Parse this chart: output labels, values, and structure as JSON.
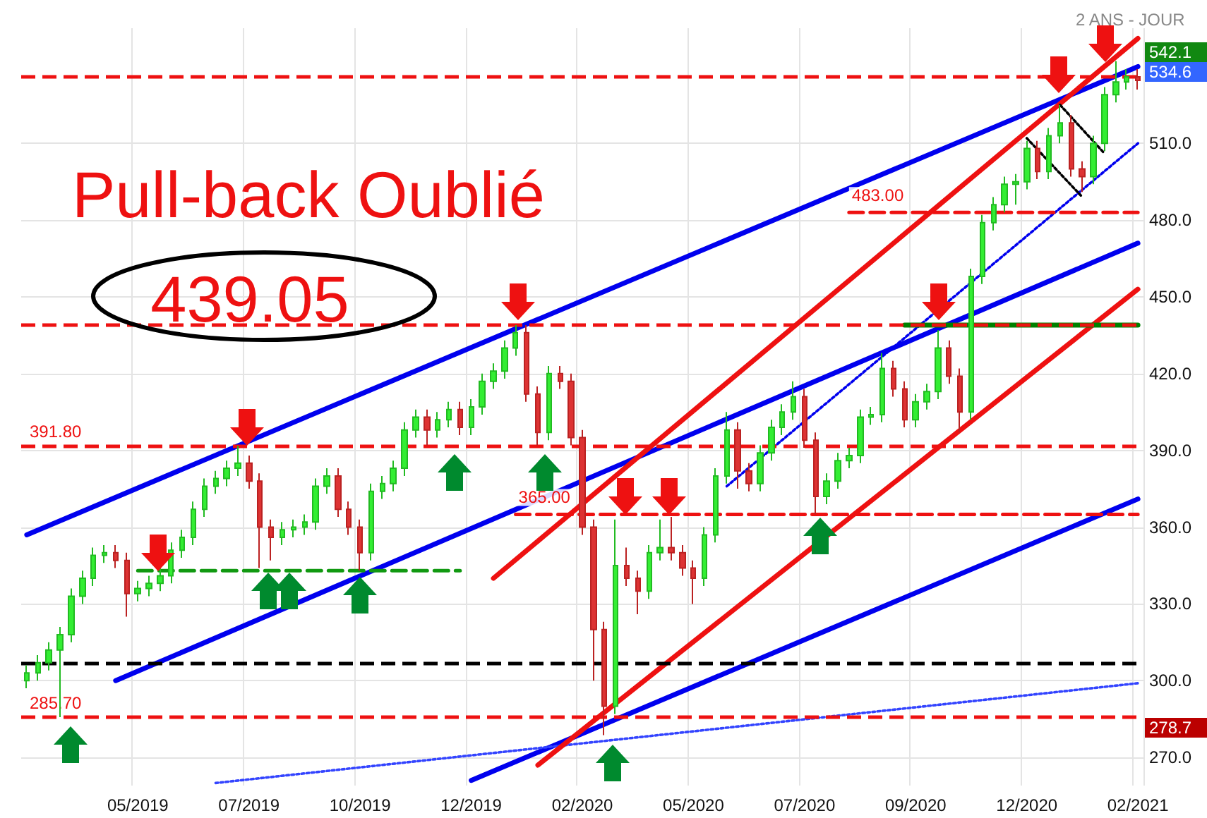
{
  "chart_data": {
    "type": "candlestick",
    "title": "Pull-back Oublié",
    "subtitle": "2 ANS - JOUR",
    "annotations": [
      "439.05",
      "542.1",
      "534.6",
      "278.7"
    ],
    "categories": [
      null,
      null,
      null,
      null,
      null,
      null,
      null,
      null,
      null,
      null,
      "05/2019",
      null,
      null,
      null,
      null,
      null,
      null,
      null,
      null,
      null,
      "07/2019",
      null,
      null,
      null,
      null,
      null,
      null,
      null,
      null,
      null,
      "10/2019",
      null,
      null,
      null,
      null,
      null,
      null,
      null,
      null,
      null,
      "12/2019",
      null,
      null,
      null,
      null,
      null,
      null,
      null,
      null,
      null,
      "02/2020",
      null,
      null,
      null,
      null,
      null,
      null,
      null,
      null,
      null,
      "05/2020",
      null,
      null,
      null,
      null,
      null,
      null,
      null,
      null,
      null,
      "07/2020",
      null,
      null,
      null,
      null,
      null,
      null,
      null,
      null,
      null,
      "09/2020",
      null,
      null,
      null,
      null,
      null,
      null,
      null,
      null,
      null,
      "12/2020",
      null,
      null,
      null,
      null,
      null,
      null,
      null,
      null,
      null,
      "02/2021"
    ],
    "ohlc": [
      [
        300,
        306,
        297,
        303
      ],
      [
        303,
        310,
        300,
        307
      ],
      [
        307,
        315,
        304,
        312
      ],
      [
        312,
        321,
        285.7,
        318
      ],
      [
        318,
        336,
        315,
        333
      ],
      [
        333,
        343,
        330,
        340
      ],
      [
        340,
        352,
        337,
        349
      ],
      [
        349,
        353,
        346,
        350
      ],
      [
        350,
        353,
        344,
        347
      ],
      [
        347,
        350,
        325,
        334
      ],
      [
        334,
        339,
        331,
        336
      ],
      [
        336,
        341,
        333,
        338
      ],
      [
        338,
        344,
        335,
        341
      ],
      [
        341,
        354,
        338,
        351
      ],
      [
        351,
        359,
        348,
        356
      ],
      [
        356,
        370,
        353,
        367
      ],
      [
        367,
        379,
        364,
        376
      ],
      [
        376,
        382,
        373,
        379
      ],
      [
        379,
        386,
        376,
        383
      ],
      [
        383,
        391.8,
        380,
        385
      ],
      [
        385,
        388,
        375,
        378
      ],
      [
        378,
        381,
        344,
        360
      ],
      [
        360,
        363,
        347,
        356
      ],
      [
        356,
        362,
        353,
        359
      ],
      [
        359,
        363,
        356,
        360
      ],
      [
        360,
        365,
        357,
        362
      ],
      [
        362,
        379,
        359,
        376
      ],
      [
        376,
        383,
        373,
        380
      ],
      [
        380,
        383,
        364,
        367
      ],
      [
        367,
        370,
        357,
        360
      ],
      [
        360,
        363,
        343,
        350
      ],
      [
        350,
        377,
        347,
        374
      ],
      [
        374,
        380,
        371,
        377
      ],
      [
        377,
        386,
        374,
        383
      ],
      [
        383,
        401,
        380,
        398
      ],
      [
        398,
        406,
        395,
        403
      ],
      [
        403,
        406,
        392,
        398
      ],
      [
        398,
        405,
        395,
        402
      ],
      [
        402,
        409,
        399,
        406
      ],
      [
        406,
        409,
        396,
        399
      ],
      [
        399,
        410,
        396,
        407
      ],
      [
        407,
        420,
        404,
        417
      ],
      [
        417,
        424,
        414,
        421
      ],
      [
        421,
        433,
        418,
        430
      ],
      [
        430,
        439,
        427,
        436
      ],
      [
        436,
        439,
        409,
        412
      ],
      [
        412,
        415,
        392,
        397
      ],
      [
        397,
        423,
        394,
        420
      ],
      [
        420,
        423,
        414,
        417
      ],
      [
        417,
        420,
        392,
        395
      ],
      [
        395,
        398,
        357,
        360
      ],
      [
        360,
        363,
        300,
        320
      ],
      [
        320,
        323,
        278.7,
        290
      ],
      [
        290,
        363,
        287,
        345
      ],
      [
        345,
        352,
        337,
        340
      ],
      [
        340,
        343,
        326,
        335
      ],
      [
        335,
        353,
        332,
        350
      ],
      [
        350,
        363,
        347,
        352
      ],
      [
        352,
        364,
        347,
        350
      ],
      [
        350,
        353,
        341,
        344
      ],
      [
        344,
        347,
        330,
        340
      ],
      [
        340,
        360,
        337,
        357
      ],
      [
        357,
        383,
        354,
        380
      ],
      [
        380,
        405,
        377,
        398
      ],
      [
        398,
        401,
        375,
        382
      ],
      [
        382,
        385,
        374,
        377
      ],
      [
        377,
        392,
        374,
        389
      ],
      [
        389,
        402,
        386,
        399
      ],
      [
        399,
        408,
        396,
        405
      ],
      [
        405,
        417,
        402,
        411
      ],
      [
        411,
        414,
        391,
        394
      ],
      [
        394,
        397,
        365,
        372
      ],
      [
        372,
        381,
        369,
        378
      ],
      [
        378,
        389,
        375,
        386
      ],
      [
        386,
        391,
        383,
        388
      ],
      [
        388,
        406,
        385,
        403
      ],
      [
        403,
        407,
        400,
        404
      ],
      [
        404,
        428,
        401,
        422
      ],
      [
        422,
        425,
        411,
        414
      ],
      [
        414,
        417,
        399,
        402
      ],
      [
        402,
        412,
        399,
        409
      ],
      [
        409,
        416,
        406,
        413
      ],
      [
        413,
        437,
        410,
        430
      ],
      [
        430,
        433,
        416,
        419
      ],
      [
        419,
        422,
        397,
        405
      ],
      [
        405,
        461,
        402,
        458
      ],
      [
        458,
        482,
        455,
        479
      ],
      [
        479,
        489,
        476,
        486
      ],
      [
        486,
        497,
        483,
        494
      ],
      [
        494,
        498,
        486,
        495
      ],
      [
        495,
        511,
        492,
        508
      ],
      [
        508,
        511,
        496,
        499
      ],
      [
        499,
        516,
        496,
        513
      ],
      [
        513,
        525,
        510,
        518
      ],
      [
        518,
        521,
        497,
        500
      ],
      [
        500,
        503,
        491,
        497
      ],
      [
        497,
        513,
        494,
        510
      ],
      [
        510,
        532,
        507,
        529
      ],
      [
        529,
        542.1,
        526,
        534
      ],
      [
        534,
        539,
        531,
        536
      ],
      [
        536,
        539,
        531,
        534.6
      ]
    ],
    "series": [
      {
        "type": "line",
        "color": "#0000ee",
        "line_style": "solid",
        "values": [
          357,
          null,
          null,
          null,
          null,
          null,
          null,
          null,
          null,
          null,
          null,
          null,
          null,
          null,
          null,
          null,
          null,
          null,
          null,
          null,
          null,
          null,
          null,
          null,
          null,
          null,
          null,
          null,
          null,
          null,
          null,
          null,
          null,
          null,
          null,
          null,
          null,
          null,
          null,
          null,
          null,
          null,
          null,
          null,
          null,
          null,
          null,
          null,
          null,
          null,
          null,
          null,
          null,
          null,
          null,
          null,
          null,
          null,
          null,
          null,
          null,
          null,
          null,
          null,
          null,
          null,
          null,
          null,
          null,
          null,
          null,
          null,
          null,
          null,
          null,
          null,
          null,
          null,
          null,
          null,
          null,
          null,
          null,
          null,
          null,
          null,
          null,
          null,
          null,
          null,
          null,
          null,
          null,
          null,
          null,
          null,
          null,
          null,
          null,
          null,
          540
        ]
      },
      {
        "type": "line",
        "color": "#0000ee",
        "line_style": "solid",
        "values": [
          null,
          null,
          null,
          null,
          null,
          null,
          null,
          null,
          300,
          null,
          null,
          null,
          null,
          null,
          null,
          null,
          null,
          null,
          null,
          null,
          null,
          null,
          null,
          null,
          null,
          null,
          null,
          null,
          null,
          null,
          null,
          null,
          null,
          null,
          null,
          null,
          null,
          null,
          null,
          null,
          null,
          null,
          null,
          null,
          null,
          null,
          null,
          null,
          null,
          null,
          null,
          null,
          null,
          null,
          null,
          null,
          null,
          null,
          null,
          null,
          null,
          null,
          null,
          null,
          null,
          null,
          null,
          null,
          null,
          null,
          null,
          null,
          null,
          null,
          null,
          null,
          null,
          null,
          null,
          null,
          null,
          null,
          null,
          null,
          null,
          null,
          null,
          null,
          null,
          null,
          null,
          null,
          null,
          null,
          null,
          null,
          null,
          null,
          null,
          null,
          471
        ]
      },
      {
        "type": "line",
        "color": "#0000ee",
        "line_style": "solid",
        "values": [
          null,
          null,
          null,
          null,
          null,
          null,
          null,
          null,
          null,
          null,
          null,
          null,
          null,
          null,
          null,
          null,
          null,
          null,
          null,
          null,
          null,
          null,
          null,
          null,
          null,
          null,
          null,
          null,
          null,
          null,
          null,
          null,
          null,
          null,
          null,
          null,
          null,
          null,
          null,
          null,
          261,
          null,
          null,
          null,
          null,
          null,
          null,
          null,
          null,
          null,
          null,
          null,
          null,
          null,
          null,
          null,
          null,
          null,
          null,
          null,
          null,
          null,
          null,
          null,
          null,
          null,
          null,
          null,
          null,
          null,
          null,
          null,
          null,
          null,
          null,
          null,
          null,
          null,
          null,
          null,
          null,
          null,
          null,
          null,
          null,
          null,
          null,
          null,
          null,
          null,
          null,
          null,
          null,
          null,
          null,
          null,
          null,
          null,
          null,
          null,
          371
        ]
      },
      {
        "type": "line",
        "color": "#3344ff",
        "line_style": "dotted",
        "values": [
          null,
          null,
          null,
          null,
          null,
          null,
          null,
          null,
          null,
          null,
          null,
          null,
          null,
          null,
          null,
          null,
          null,
          260,
          null,
          null,
          null,
          null,
          null,
          null,
          null,
          null,
          null,
          null,
          null,
          null,
          null,
          null,
          null,
          null,
          null,
          null,
          null,
          null,
          null,
          null,
          null,
          null,
          null,
          null,
          null,
          null,
          null,
          null,
          null,
          null,
          null,
          null,
          null,
          null,
          null,
          null,
          null,
          null,
          null,
          null,
          null,
          null,
          null,
          null,
          null,
          null,
          null,
          null,
          null,
          null,
          null,
          null,
          null,
          null,
          null,
          null,
          null,
          null,
          null,
          null,
          null,
          null,
          null,
          null,
          null,
          null,
          null,
          null,
          null,
          null,
          null,
          null,
          null,
          null,
          null,
          null,
          null,
          null,
          null,
          null,
          299
        ]
      },
      {
        "type": "line",
        "color": "#0000ee",
        "line_style": "dotted",
        "values": [
          null,
          null,
          null,
          null,
          null,
          null,
          null,
          null,
          null,
          null,
          null,
          null,
          null,
          null,
          null,
          null,
          null,
          null,
          null,
          null,
          null,
          null,
          null,
          null,
          null,
          null,
          null,
          null,
          null,
          null,
          null,
          null,
          null,
          null,
          null,
          null,
          null,
          null,
          null,
          null,
          null,
          null,
          null,
          null,
          null,
          null,
          null,
          null,
          null,
          null,
          null,
          null,
          null,
          null,
          null,
          null,
          null,
          null,
          null,
          null,
          null,
          null,
          null,
          376,
          null,
          null,
          null,
          null,
          null,
          null,
          null,
          null,
          null,
          null,
          null,
          null,
          null,
          null,
          null,
          null,
          null,
          null,
          null,
          null,
          null,
          null,
          null,
          null,
          null,
          null,
          null,
          null,
          null,
          null,
          null,
          null,
          null,
          null,
          null,
          null,
          510
        ]
      },
      {
        "type": "line",
        "color": "#ee1111",
        "line_style": "solid",
        "values": [
          null,
          null,
          null,
          null,
          null,
          null,
          null,
          null,
          null,
          null,
          null,
          null,
          null,
          null,
          null,
          null,
          null,
          null,
          null,
          null,
          null,
          null,
          null,
          null,
          null,
          null,
          null,
          null,
          null,
          null,
          null,
          null,
          null,
          null,
          null,
          null,
          null,
          null,
          null,
          null,
          null,
          null,
          340,
          null,
          null,
          null,
          null,
          null,
          null,
          null,
          null,
          null,
          null,
          null,
          null,
          null,
          null,
          null,
          null,
          null,
          null,
          null,
          null,
          null,
          null,
          null,
          null,
          null,
          null,
          null,
          null,
          null,
          null,
          null,
          null,
          null,
          null,
          null,
          null,
          null,
          null,
          null,
          null,
          null,
          null,
          null,
          null,
          null,
          null,
          null,
          null,
          null,
          null,
          null,
          null,
          null,
          null,
          null,
          null,
          null,
          551
        ]
      },
      {
        "type": "line",
        "color": "#ee1111",
        "line_style": "solid",
        "values": [
          null,
          null,
          null,
          null,
          null,
          null,
          null,
          null,
          null,
          null,
          null,
          null,
          null,
          null,
          null,
          null,
          null,
          null,
          null,
          null,
          null,
          null,
          null,
          null,
          null,
          null,
          null,
          null,
          null,
          null,
          null,
          null,
          null,
          null,
          null,
          null,
          null,
          null,
          null,
          null,
          null,
          null,
          null,
          null,
          null,
          null,
          267,
          null,
          null,
          null,
          null,
          null,
          null,
          null,
          null,
          null,
          null,
          null,
          null,
          null,
          null,
          null,
          null,
          null,
          null,
          null,
          null,
          null,
          null,
          null,
          null,
          null,
          null,
          null,
          null,
          null,
          null,
          null,
          null,
          null,
          null,
          null,
          null,
          null,
          null,
          null,
          null,
          null,
          null,
          null,
          null,
          null,
          null,
          null,
          null,
          null,
          null,
          null,
          null,
          null,
          453
        ]
      },
      {
        "type": "line",
        "color": "#000000",
        "line_style": "dotted",
        "values": [
          null,
          null,
          null,
          null,
          null,
          null,
          null,
          null,
          null,
          null,
          null,
          null,
          null,
          null,
          null,
          null,
          null,
          null,
          null,
          null,
          null,
          null,
          null,
          null,
          null,
          null,
          null,
          null,
          null,
          null,
          null,
          null,
          null,
          null,
          null,
          null,
          null,
          null,
          null,
          null,
          null,
          null,
          null,
          null,
          null,
          null,
          null,
          null,
          null,
          null,
          null,
          null,
          null,
          null,
          null,
          null,
          null,
          null,
          null,
          null,
          null,
          null,
          null,
          null,
          null,
          null,
          null,
          null,
          null,
          null,
          null,
          null,
          null,
          null,
          null,
          null,
          null,
          null,
          null,
          null,
          null,
          null,
          null,
          null,
          null,
          null,
          null,
          null,
          null,
          null,
          512,
          null,
          null,
          null,
          null,
          489,
          null,
          null,
          null,
          null,
          null
        ]
      },
      {
        "type": "line",
        "color": "#000000",
        "line_style": "dotted",
        "values": [
          null,
          null,
          null,
          null,
          null,
          null,
          null,
          null,
          null,
          null,
          null,
          null,
          null,
          null,
          null,
          null,
          null,
          null,
          null,
          null,
          null,
          null,
          null,
          null,
          null,
          null,
          null,
          null,
          null,
          null,
          null,
          null,
          null,
          null,
          null,
          null,
          null,
          null,
          null,
          null,
          null,
          null,
          null,
          null,
          null,
          null,
          null,
          null,
          null,
          null,
          null,
          null,
          null,
          null,
          null,
          null,
          null,
          null,
          null,
          null,
          null,
          null,
          null,
          null,
          null,
          null,
          null,
          null,
          null,
          null,
          null,
          null,
          null,
          null,
          null,
          null,
          null,
          null,
          null,
          null,
          null,
          null,
          null,
          null,
          null,
          null,
          null,
          null,
          null,
          null,
          null,
          null,
          null,
          525,
          null,
          null,
          null,
          506,
          null,
          null,
          null
        ]
      },
      {
        "type": "line",
        "color": "#119911",
        "line_style": "dashed",
        "values": [
          null,
          null,
          null,
          null,
          null,
          null,
          null,
          null,
          null,
          null,
          343,
          null,
          null,
          null,
          null,
          null,
          null,
          null,
          null,
          null,
          null,
          null,
          null,
          null,
          null,
          null,
          null,
          null,
          null,
          null,
          null,
          null,
          null,
          null,
          null,
          null,
          null,
          null,
          null,
          343,
          null,
          null,
          null,
          null,
          null,
          null,
          null,
          null,
          null,
          null,
          null,
          null,
          null,
          null,
          null,
          null,
          null,
          null,
          null,
          null,
          null,
          null,
          null,
          null,
          null,
          null,
          null,
          null,
          null,
          null,
          null,
          null,
          null,
          null,
          null,
          null,
          null,
          null,
          null,
          null,
          null,
          null,
          null,
          null,
          null,
          null,
          null,
          null,
          null,
          null,
          null,
          null,
          null,
          null,
          null,
          null,
          null,
          null,
          null,
          null,
          null
        ]
      },
      {
        "type": "line",
        "color": "#008000",
        "line_style": "solid",
        "values": [
          null,
          null,
          null,
          null,
          null,
          null,
          null,
          null,
          null,
          null,
          null,
          null,
          null,
          null,
          null,
          null,
          null,
          null,
          null,
          null,
          null,
          null,
          null,
          null,
          null,
          null,
          null,
          null,
          null,
          null,
          null,
          null,
          null,
          null,
          null,
          null,
          null,
          null,
          null,
          null,
          null,
          null,
          null,
          null,
          null,
          null,
          null,
          null,
          null,
          null,
          null,
          null,
          null,
          null,
          null,
          null,
          null,
          null,
          null,
          null,
          null,
          null,
          null,
          null,
          null,
          null,
          null,
          null,
          null,
          null,
          null,
          null,
          null,
          null,
          null,
          null,
          null,
          null,
          null,
          439,
          null,
          null,
          null,
          null,
          null,
          null,
          null,
          null,
          null,
          null,
          null,
          null,
          null,
          null,
          null,
          null,
          null,
          null,
          null,
          null,
          439
        ]
      },
      {
        "type": "line",
        "name": "483.00",
        "color": "#ee1111",
        "line_style": "dashed",
        "values": [
          null,
          null,
          null,
          null,
          null,
          null,
          null,
          null,
          null,
          null,
          null,
          null,
          null,
          null,
          null,
          null,
          null,
          null,
          null,
          null,
          null,
          null,
          null,
          null,
          null,
          null,
          null,
          null,
          null,
          null,
          null,
          null,
          null,
          null,
          null,
          null,
          null,
          null,
          null,
          null,
          null,
          null,
          null,
          null,
          null,
          null,
          null,
          null,
          null,
          null,
          null,
          null,
          null,
          null,
          null,
          null,
          null,
          null,
          null,
          null,
          null,
          null,
          null,
          null,
          null,
          null,
          null,
          null,
          null,
          null,
          null,
          null,
          null,
          null,
          483,
          null,
          null,
          null,
          null,
          null,
          null,
          null,
          null,
          null,
          null,
          null,
          null,
          null,
          null,
          null,
          null,
          null,
          null,
          null,
          null,
          null,
          null,
          null,
          null,
          null,
          483
        ]
      },
      {
        "type": "line",
        "name": "365.00",
        "color": "#ee1111",
        "line_style": "dashed",
        "values": [
          null,
          null,
          null,
          null,
          null,
          null,
          null,
          null,
          null,
          null,
          null,
          null,
          null,
          null,
          null,
          null,
          null,
          null,
          null,
          null,
          null,
          null,
          null,
          null,
          null,
          null,
          null,
          null,
          null,
          null,
          null,
          null,
          null,
          null,
          null,
          null,
          null,
          null,
          null,
          null,
          null,
          null,
          null,
          null,
          365,
          null,
          null,
          null,
          null,
          null,
          null,
          null,
          null,
          null,
          null,
          null,
          null,
          null,
          null,
          null,
          null,
          null,
          null,
          null,
          null,
          null,
          null,
          null,
          null,
          null,
          null,
          null,
          null,
          null,
          null,
          null,
          null,
          null,
          null,
          null,
          null,
          null,
          null,
          null,
          null,
          null,
          null,
          null,
          null,
          null,
          null,
          null,
          null,
          null,
          null,
          null,
          null,
          null,
          null,
          null,
          365
        ]
      }
    ],
    "ref_lines": [
      {
        "axis": "y",
        "value": 536,
        "label": null,
        "color": "#ee1111",
        "line_style": "dashed"
      },
      {
        "axis": "y",
        "value": 439.05,
        "label": null,
        "color": "#ee1111",
        "line_style": "dashed"
      },
      {
        "axis": "y",
        "value": 391.8,
        "label": "391.80",
        "color": "#ee1111",
        "line_style": "dashed"
      },
      {
        "axis": "y",
        "value": 307,
        "label": null,
        "color": "#000000",
        "line_style": "dashed"
      },
      {
        "axis": "y",
        "value": 285.7,
        "label": "285.70",
        "color": "#ee1111",
        "line_style": "dashed"
      }
    ],
    "ylim": [
      259,
      555
    ],
    "yticks": [
      {
        "value": 270,
        "label": "270.0"
      },
      {
        "value": 300,
        "label": "300.0"
      },
      {
        "value": 330,
        "label": "330.0"
      },
      {
        "value": 360,
        "label": "360.0"
      },
      {
        "value": 390,
        "label": "390.0"
      },
      {
        "value": 420,
        "label": "420.0"
      },
      {
        "value": 450,
        "label": "450.0"
      },
      {
        "value": 480,
        "label": "480.0"
      },
      {
        "value": 510,
        "label": "510.0"
      }
    ],
    "grid": true
  }
}
